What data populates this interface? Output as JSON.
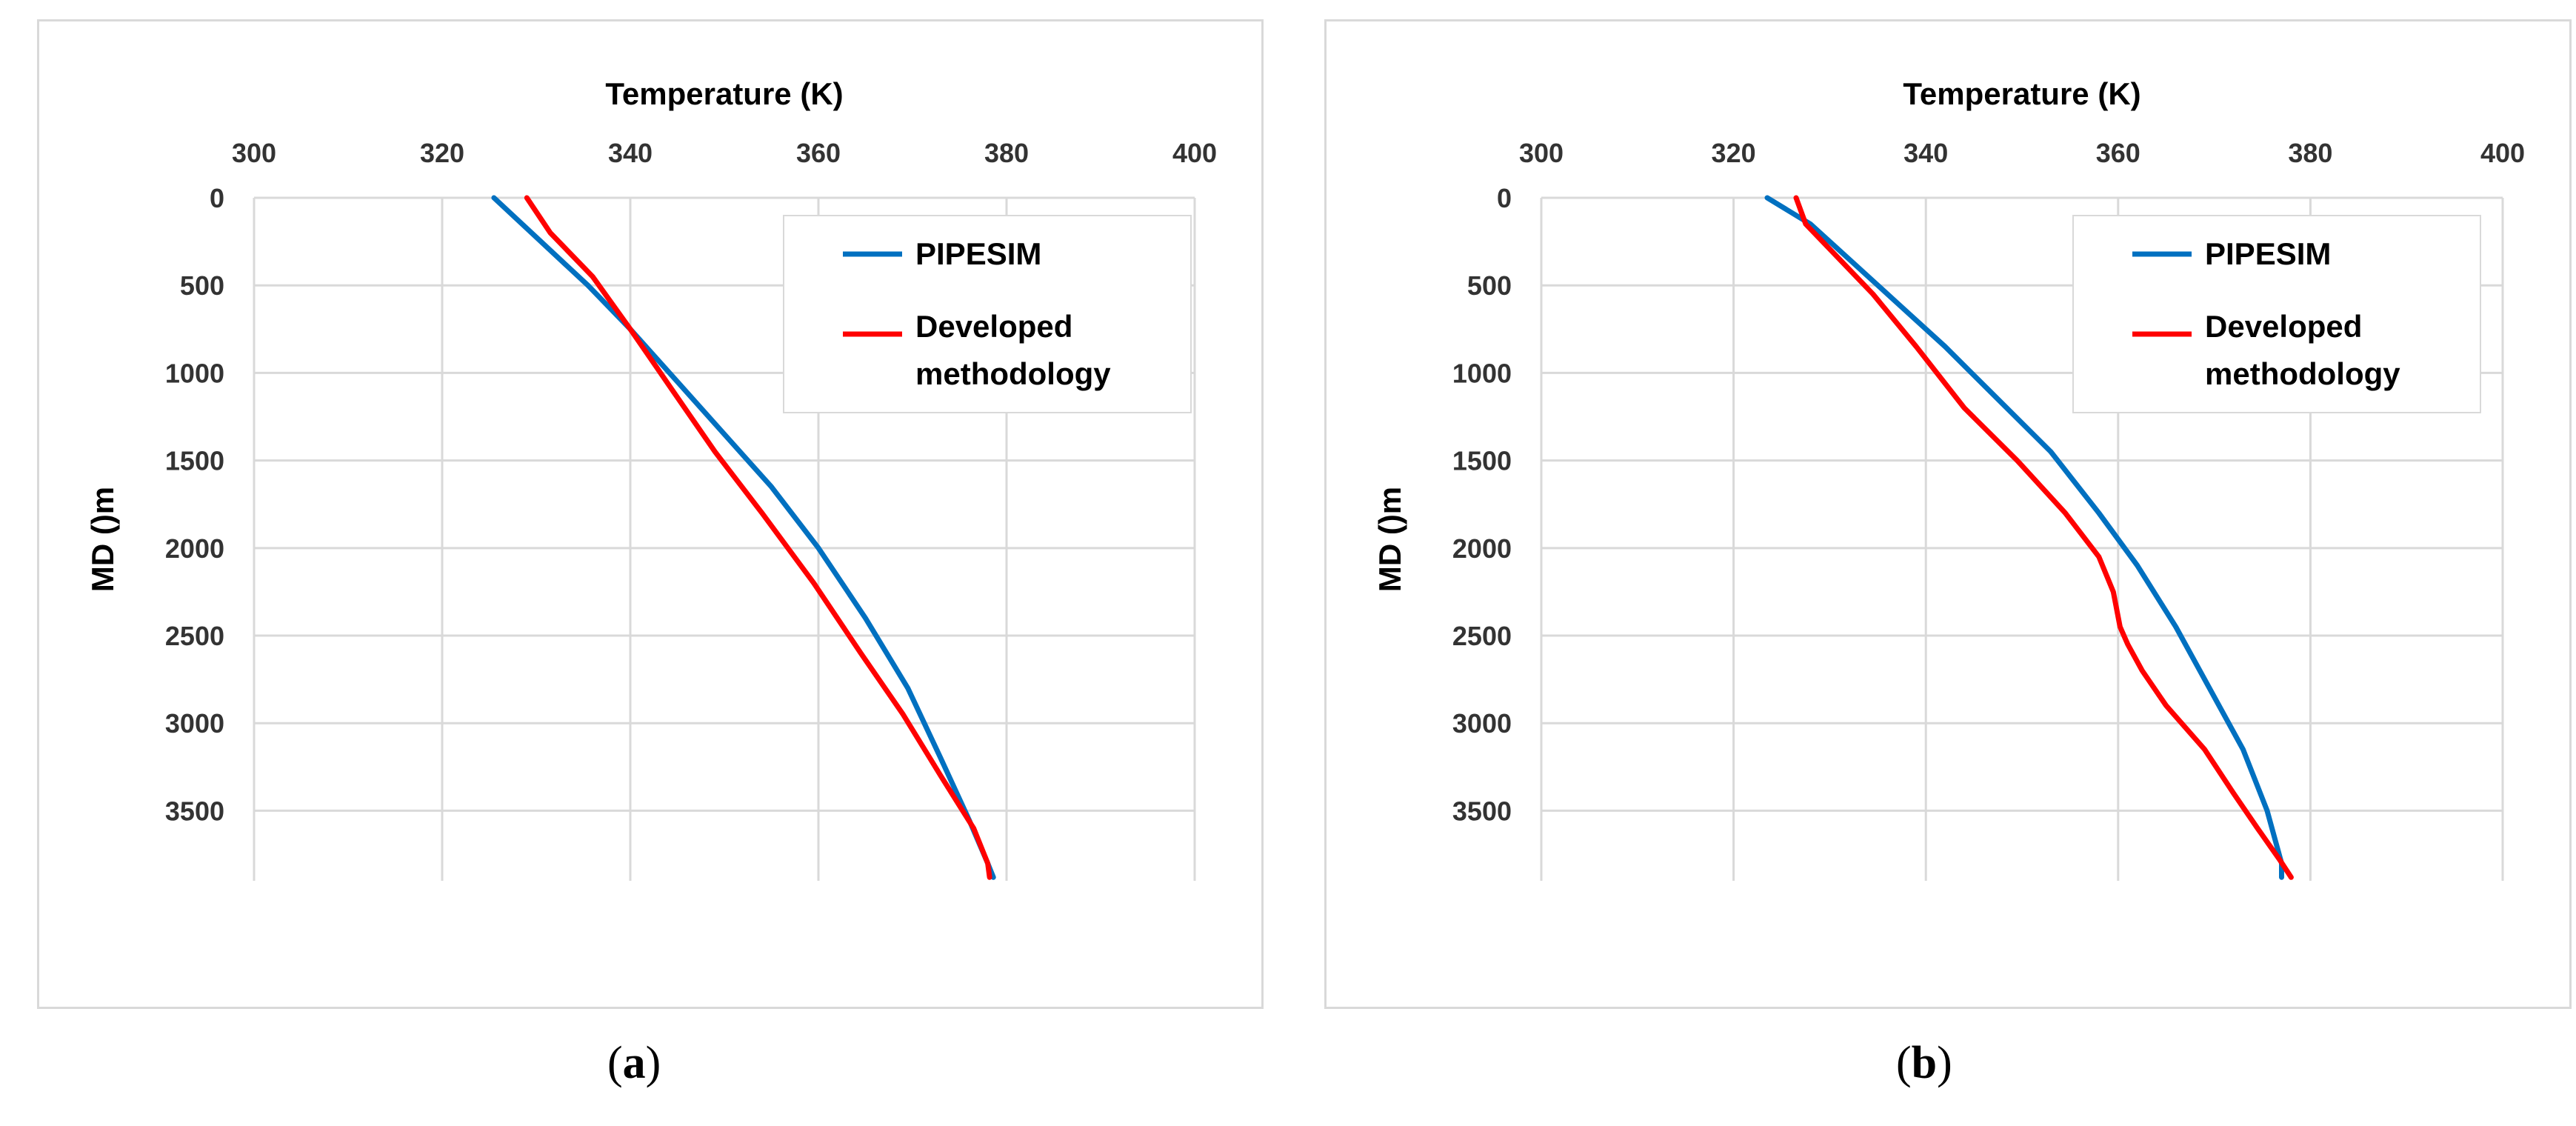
{
  "captions": [
    {
      "open": "(",
      "letter": "a",
      "close": ")"
    },
    {
      "open": "(",
      "letter": "b",
      "close": ")"
    }
  ],
  "chart_data": [
    {
      "type": "line",
      "panel": "a",
      "xlabel": "Temperature (K)",
      "ylabel": "MD ()m",
      "xlim": [
        300,
        400
      ],
      "ylim": [
        0,
        3900
      ],
      "y_reversed": true,
      "x_axis_position": "top",
      "x_ticks": [
        300,
        320,
        340,
        360,
        380,
        400
      ],
      "y_ticks": [
        0,
        500,
        1000,
        1500,
        2000,
        2500,
        3000,
        3500
      ],
      "grid": true,
      "legend_position": "top-right",
      "series": [
        {
          "name": "PIPESIM",
          "color": "#0070C0",
          "x": [
            325.5,
            330.5,
            335.5,
            340,
            345,
            350,
            355,
            360,
            365,
            369.5,
            373,
            376,
            378,
            378.6
          ],
          "y": [
            0,
            250,
            500,
            750,
            1050,
            1350,
            1650,
            2000,
            2400,
            2800,
            3200,
            3550,
            3800,
            3880
          ]
        },
        {
          "name": "Developed methodology",
          "color": "#FF0000",
          "x": [
            329,
            331.5,
            336,
            340,
            344.5,
            349,
            354,
            359.5,
            364.5,
            369,
            373,
            376.5,
            378,
            378.2
          ],
          "y": [
            0,
            200,
            450,
            750,
            1100,
            1450,
            1800,
            2200,
            2600,
            2950,
            3300,
            3600,
            3800,
            3880
          ]
        }
      ]
    },
    {
      "type": "line",
      "panel": "b",
      "xlabel": "Temperature (K)",
      "ylabel": "MD ()m",
      "xlim": [
        300,
        400
      ],
      "ylim": [
        0,
        3900
      ],
      "y_reversed": true,
      "x_axis_position": "top",
      "x_ticks": [
        300,
        320,
        340,
        360,
        380,
        400
      ],
      "y_ticks": [
        0,
        500,
        1000,
        1500,
        2000,
        2500,
        3000,
        3500
      ],
      "grid": true,
      "legend_position": "top-right",
      "series": [
        {
          "name": "PIPESIM",
          "color": "#0070C0",
          "x": [
            323.5,
            328,
            332,
            337,
            342,
            347.5,
            353,
            358,
            362,
            366,
            369.5,
            373,
            375.5,
            377,
            377
          ],
          "y": [
            0,
            150,
            350,
            600,
            850,
            1150,
            1450,
            1800,
            2100,
            2450,
            2800,
            3150,
            3500,
            3800,
            3880
          ]
        },
        {
          "name": "Developed methodology",
          "color": "#FF0000",
          "x": [
            326.5,
            327.5,
            331,
            334.5,
            339,
            344,
            349.5,
            354.5,
            358,
            359.5,
            360.2,
            361,
            362.5,
            365,
            369,
            372,
            374.5,
            376.8,
            378
          ],
          "y": [
            0,
            150,
            350,
            550,
            850,
            1200,
            1500,
            1800,
            2050,
            2250,
            2450,
            2550,
            2700,
            2900,
            3150,
            3400,
            3600,
            3780,
            3880
          ]
        }
      ]
    }
  ]
}
